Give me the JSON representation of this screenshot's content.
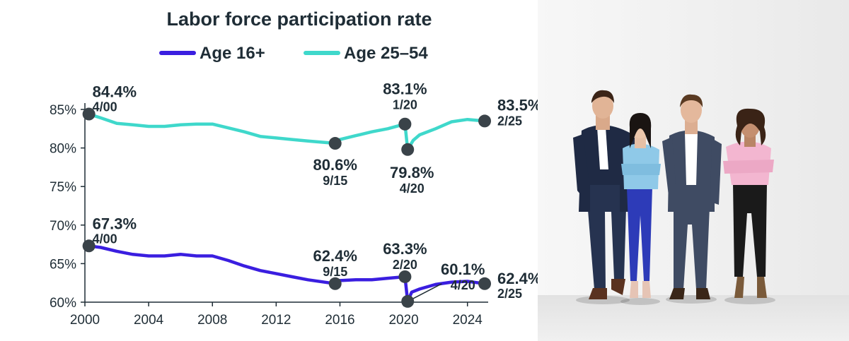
{
  "chart_data": {
    "type": "line",
    "title": "Labor force participation rate",
    "xlabel": "",
    "ylabel": "",
    "xlim": [
      2000,
      2025.3
    ],
    "ylim": [
      60,
      85
    ],
    "x_ticks": [
      "2000",
      "2004",
      "2008",
      "2012",
      "2016",
      "2020",
      "2024"
    ],
    "y_ticks": [
      "60%",
      "65%",
      "70%",
      "75%",
      "80%",
      "85%"
    ],
    "grid": false,
    "legend_position": "top",
    "series": [
      {
        "name": "Age 16+",
        "color": "#3a1ee0",
        "points": [
          [
            2000.25,
            67.3
          ],
          [
            2001,
            67.1
          ],
          [
            2002,
            66.6
          ],
          [
            2003,
            66.2
          ],
          [
            2004,
            66.0
          ],
          [
            2005,
            66.0
          ],
          [
            2006,
            66.2
          ],
          [
            2007,
            66.0
          ],
          [
            2008,
            66.0
          ],
          [
            2009,
            65.4
          ],
          [
            2010,
            64.7
          ],
          [
            2011,
            64.1
          ],
          [
            2012,
            63.7
          ],
          [
            2013,
            63.3
          ],
          [
            2014,
            62.9
          ],
          [
            2015.7,
            62.4
          ],
          [
            2016,
            62.8
          ],
          [
            2017,
            62.9
          ],
          [
            2018,
            62.9
          ],
          [
            2019,
            63.1
          ],
          [
            2020.08,
            63.3
          ],
          [
            2020.25,
            60.1
          ],
          [
            2020.5,
            61.3
          ],
          [
            2021,
            61.7
          ],
          [
            2022,
            62.3
          ],
          [
            2023,
            62.6
          ],
          [
            2024,
            62.7
          ],
          [
            2025.08,
            62.4
          ]
        ]
      },
      {
        "name": "Age 25–54",
        "color": "#3fd8cb",
        "points": [
          [
            2000.25,
            84.4
          ],
          [
            2001,
            83.9
          ],
          [
            2002,
            83.2
          ],
          [
            2003,
            83.0
          ],
          [
            2004,
            82.8
          ],
          [
            2005,
            82.8
          ],
          [
            2006,
            83.0
          ],
          [
            2007,
            83.1
          ],
          [
            2008,
            83.1
          ],
          [
            2009,
            82.6
          ],
          [
            2010,
            82.1
          ],
          [
            2011,
            81.5
          ],
          [
            2012,
            81.3
          ],
          [
            2013,
            81.1
          ],
          [
            2014,
            80.9
          ],
          [
            2015.7,
            80.6
          ],
          [
            2016,
            81.1
          ],
          [
            2017,
            81.6
          ],
          [
            2018,
            82.1
          ],
          [
            2019,
            82.5
          ],
          [
            2020.08,
            83.1
          ],
          [
            2020.25,
            79.8
          ],
          [
            2020.6,
            81.0
          ],
          [
            2021,
            81.7
          ],
          [
            2022,
            82.5
          ],
          [
            2023,
            83.4
          ],
          [
            2024,
            83.7
          ],
          [
            2025.08,
            83.5
          ]
        ]
      }
    ],
    "annotations": [
      {
        "series": 0,
        "x": 2000.25,
        "y": 67.3,
        "value": "67.3%",
        "date": "4/00"
      },
      {
        "series": 0,
        "x": 2015.7,
        "y": 62.4,
        "value": "62.4%",
        "date": "9/15"
      },
      {
        "series": 0,
        "x": 2020.08,
        "y": 63.3,
        "value": "63.3%",
        "date": "2/20"
      },
      {
        "series": 0,
        "x": 2020.25,
        "y": 60.1,
        "value": "60.1%",
        "date": "4/20"
      },
      {
        "series": 0,
        "x": 2025.08,
        "y": 62.4,
        "value": "62.4%",
        "date": "2/25"
      },
      {
        "series": 1,
        "x": 2000.25,
        "y": 84.4,
        "value": "84.4%",
        "date": "4/00"
      },
      {
        "series": 1,
        "x": 2015.7,
        "y": 80.6,
        "value": "80.6%",
        "date": "9/15"
      },
      {
        "series": 1,
        "x": 2020.08,
        "y": 83.1,
        "value": "83.1%",
        "date": "1/20"
      },
      {
        "series": 1,
        "x": 2020.25,
        "y": 79.8,
        "value": "79.8%",
        "date": "4/20"
      },
      {
        "series": 1,
        "x": 2025.08,
        "y": 83.5,
        "value": "83.5%",
        "date": "2/25"
      }
    ]
  },
  "photo": {
    "subject": "four-business-people-standing-against-wall",
    "colors": {
      "suit_navy": "#1f2a44",
      "shirt_light_blue": "#8fc9e8",
      "pants_blue": "#2d3bb8",
      "suit_gray_blue": "#3f4b63",
      "shirt_pink": "#f3b6d0",
      "pants_black": "#1a1a1a"
    }
  }
}
